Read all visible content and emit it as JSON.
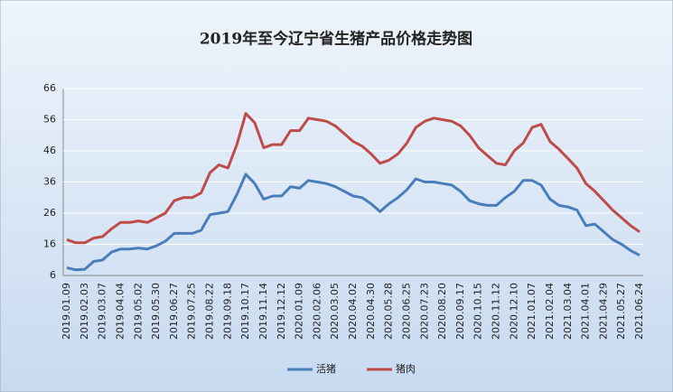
{
  "chart_data": {
    "type": "line",
    "title": "2019年至今辽宁省生猪产品价格走势图",
    "categories": [
      "2019.01.09",
      null,
      "2019.02.03",
      null,
      "2019.03.07",
      null,
      "2019.04.04",
      null,
      "2019.05.02",
      null,
      "2019.05.30",
      null,
      "2019.06.27",
      null,
      "2019.07.25",
      null,
      "2019.08.22",
      null,
      "2019.09.18",
      null,
      "2019.10.17",
      null,
      "2019.11.14",
      null,
      "2019.12.12",
      null,
      "2020.01.09",
      null,
      "2020.02.06",
      null,
      "2020.03.05",
      null,
      "2020.04.02",
      null,
      "2020.04.30",
      null,
      "2020.05.28",
      null,
      "2020.06.25",
      null,
      "2020.07.23",
      null,
      "2020.08.20",
      null,
      "2020.09.17",
      null,
      "2020.10.15",
      null,
      "2020.11.12",
      null,
      "2020.12.10",
      null,
      "2021.01.07",
      null,
      "2021.02.04",
      null,
      "2021.03.04",
      null,
      "2021.04.01",
      null,
      "2021.04.29",
      null,
      "2021.05.27",
      null,
      "2021.06.24"
    ],
    "series": [
      {
        "name": "活猪",
        "color": "#4a7ebb",
        "values": [
          8.5,
          7.8,
          8,
          10.5,
          11,
          13.5,
          14.5,
          14.5,
          14.8,
          14.5,
          15.5,
          17,
          19.5,
          19.5,
          19.5,
          20.5,
          25.5,
          26,
          26.5,
          32,
          38.5,
          35.5,
          30.5,
          31.5,
          31.5,
          34.5,
          34,
          36.5,
          36,
          35.5,
          34.5,
          33,
          31.5,
          31,
          29,
          26.5,
          29,
          31,
          33.5,
          37,
          36,
          36,
          35.5,
          35,
          33,
          30,
          29,
          28.5,
          28.5,
          31,
          33,
          36.5,
          36.5,
          35,
          30.5,
          28.5,
          28,
          27,
          22,
          22.5,
          20,
          17.5,
          16,
          14,
          12.5
        ]
      },
      {
        "name": "猪肉",
        "color": "#be4b48",
        "values": [
          17.5,
          16.5,
          16.5,
          18,
          18.5,
          21,
          23,
          23,
          23.5,
          23,
          24.5,
          26,
          30,
          31,
          31,
          32.5,
          39,
          41.5,
          40.5,
          48,
          58,
          55,
          47,
          48,
          48,
          52.5,
          52.5,
          56.5,
          56,
          55.5,
          54,
          51.5,
          49,
          47.5,
          45,
          42,
          43,
          45,
          48.5,
          53.5,
          55.5,
          56.5,
          56,
          55.5,
          54,
          51,
          47,
          44.5,
          42,
          41.5,
          46,
          48.5,
          53.5,
          54.5,
          49,
          46.5,
          43.5,
          40.5,
          35.5,
          33,
          30,
          27,
          24.5,
          22,
          20
        ]
      }
    ],
    "ylim": [
      6,
      66
    ],
    "yticks": [
      6,
      16,
      26,
      36,
      46,
      56,
      66
    ],
    "grid": true,
    "legend": "bottom"
  }
}
